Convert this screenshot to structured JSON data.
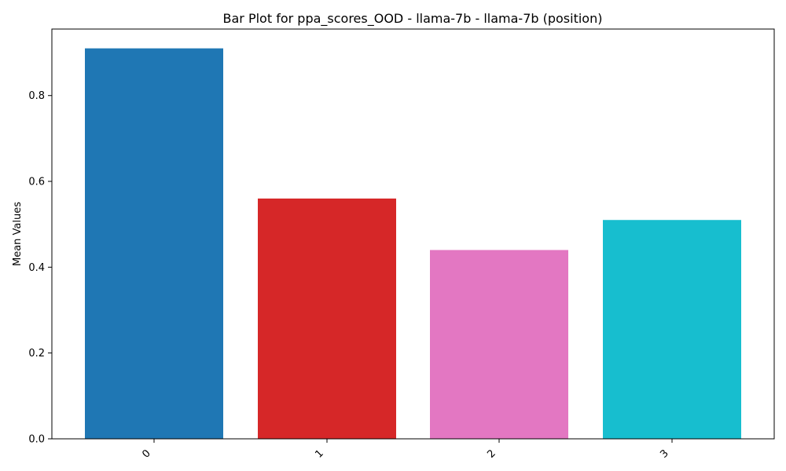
{
  "chart_data": {
    "type": "bar",
    "title": "Bar Plot for ppa_scores_OOD - llama-7b - llama-7b (position)",
    "xlabel": "",
    "ylabel": "Mean Values",
    "categories": [
      "0",
      "1",
      "2",
      "3"
    ],
    "values": [
      0.91,
      0.56,
      0.44,
      0.51
    ],
    "colors": [
      "#1f77b4",
      "#d62728",
      "#e377c2",
      "#17becf"
    ],
    "ylim": [
      0,
      0.955
    ],
    "yticks": [
      0.0,
      0.2,
      0.4,
      0.6,
      0.8
    ],
    "ytick_labels": [
      "0.0",
      "0.2",
      "0.4",
      "0.6",
      "0.8"
    ],
    "grid": false,
    "legend": "none"
  }
}
